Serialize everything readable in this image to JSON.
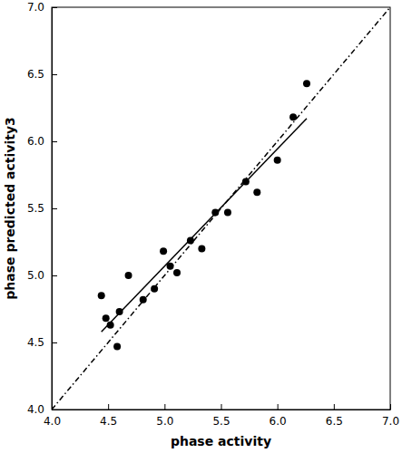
{
  "chart_data": {
    "type": "scatter",
    "x_label": "phase activity",
    "y_label": "phase predicted activity3",
    "series": [
      {
        "type": "scatter",
        "marker": "circle",
        "color": "#000000",
        "x": [
          4.44,
          4.48,
          4.52,
          4.58,
          4.6,
          4.68,
          4.81,
          4.91,
          4.99,
          5.05,
          5.11,
          5.23,
          5.33,
          5.45,
          5.56,
          5.72,
          5.82,
          6.0,
          6.14,
          6.26
        ],
        "values": [
          4.85,
          4.68,
          4.63,
          4.47,
          4.73,
          5.0,
          4.82,
          4.9,
          5.18,
          5.07,
          5.02,
          5.26,
          5.2,
          5.47,
          5.47,
          5.7,
          5.62,
          5.86,
          6.18,
          6.43
        ]
      },
      {
        "type": "line",
        "line_style": "solid",
        "color": "#000000",
        "x": [
          4.44,
          6.26
        ],
        "values": [
          4.58,
          6.17
        ]
      },
      {
        "type": "line",
        "line_style": "dashdot",
        "color": "#000000",
        "x": [
          4.0,
          7.0
        ],
        "values": [
          4.0,
          7.0
        ]
      }
    ],
    "xlim": [
      4.0,
      7.0
    ],
    "ylim": [
      4.0,
      7.0
    ],
    "xticks": [
      {
        "value": 4.0,
        "label": "4.0"
      },
      {
        "value": 4.5,
        "label": "4.5"
      },
      {
        "value": 5.0,
        "label": "5.0"
      },
      {
        "value": 5.5,
        "label": "5.5"
      },
      {
        "value": 6.0,
        "label": "6.0"
      },
      {
        "value": 6.5,
        "label": "6.5"
      },
      {
        "value": 7.0,
        "label": "7.0"
      }
    ],
    "yticks": [
      {
        "value": 4.0,
        "label": "4.0"
      },
      {
        "value": 4.5,
        "label": "4.5"
      },
      {
        "value": 5.0,
        "label": "5.0"
      },
      {
        "value": 5.5,
        "label": "5.5"
      },
      {
        "value": 6.0,
        "label": "6.0"
      },
      {
        "value": 6.5,
        "label": "6.5"
      },
      {
        "value": 7.0,
        "label": "7.0"
      }
    ],
    "grid": false
  }
}
